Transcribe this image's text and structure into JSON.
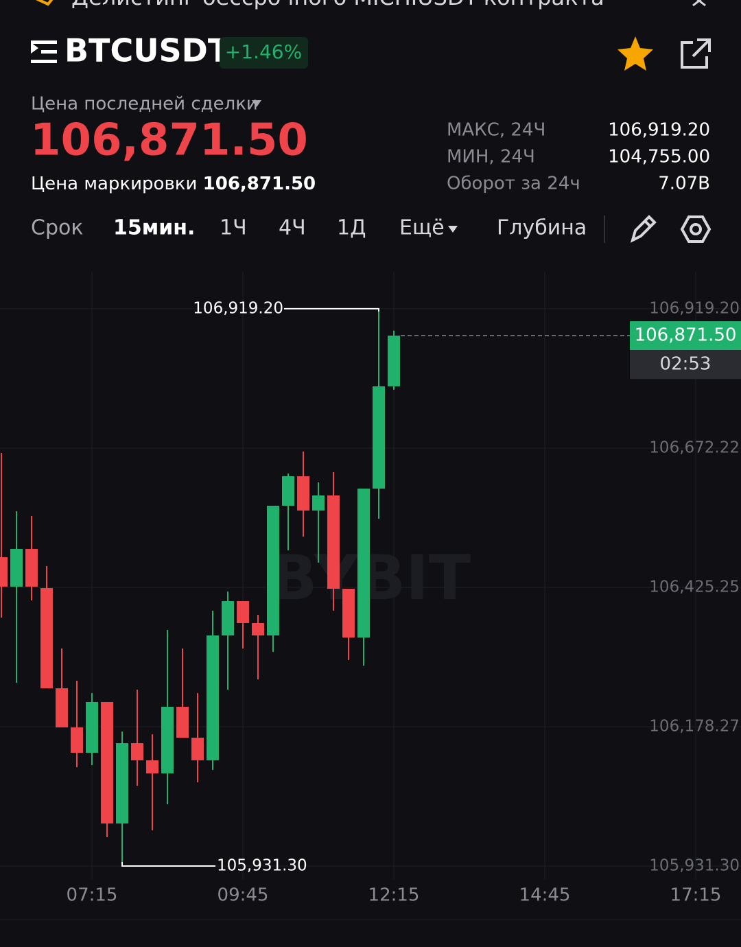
{
  "banner": "Делистинг бессрочного MICHIUSDT-контракта",
  "header": {
    "symbol": "BTCUSDT",
    "change": "+1.46%"
  },
  "price": {
    "last_label": "Цена последней сделки",
    "last": "106,871.50",
    "mark_label": "Цена маркировки",
    "mark": "106,871.50"
  },
  "stats": [
    {
      "label": "МАКС, 24Ч",
      "value": "106,919.20"
    },
    {
      "label": "МИН, 24Ч",
      "value": "104,755.00"
    },
    {
      "label": "Оборот за 24ч",
      "value": "7.07B"
    }
  ],
  "tabs": [
    "Срок",
    "15мин.",
    "1Ч",
    "4Ч",
    "1Д",
    "Ещё",
    "Глубина"
  ],
  "chart": {
    "type": "candlestick",
    "watermark": "BYBIT",
    "up_color": "#20b26c",
    "down_color": "#ef454a",
    "grid": true,
    "ylim": [
      105907,
      106986
    ],
    "yticks": [
      {
        "value": 106919.2,
        "label": "106,919.20"
      },
      {
        "value": 106672.22,
        "label": "106,672.22"
      },
      {
        "value": 106425.25,
        "label": "106,425.25"
      },
      {
        "value": 106178.27,
        "label": "106,178.27"
      },
      {
        "value": 105931.3,
        "label": "105,931.30"
      }
    ],
    "xticks": [
      "07:15",
      "09:45",
      "12:15",
      "14:45",
      "17:15"
    ],
    "high_marker": {
      "value": 106919.2,
      "label": "106,919.20"
    },
    "low_marker": {
      "value": 105931.3,
      "label": "105,931.30"
    },
    "last_price": {
      "value": 106871.5,
      "label": "106,871.50"
    },
    "countdown": "02:53",
    "candles": [
      {
        "open": 106478.8,
        "high": 106663.7,
        "low": 106371.7,
        "close": 106426.5
      },
      {
        "open": 106426.5,
        "high": 106560.3,
        "low": 106256.2,
        "close": 106493.4
      },
      {
        "open": 106493.4,
        "high": 106551.8,
        "low": 106402.1,
        "close": 106426.5
      },
      {
        "open": 106424.0,
        "high": 106463.0,
        "low": 106246.4,
        "close": 106246.4
      },
      {
        "open": 106246.4,
        "high": 106317.0,
        "low": 106177.1,
        "close": 106177.1
      },
      {
        "open": 106177.1,
        "high": 106259.8,
        "low": 106106.5,
        "close": 106132.1
      },
      {
        "open": 106132.1,
        "high": 106237.9,
        "low": 106110.2,
        "close": 106222.1
      },
      {
        "open": 106222.1,
        "high": 106222.1,
        "low": 105982.4,
        "close": 106006.7
      },
      {
        "open": 106006.7,
        "high": 106169.8,
        "low": 105931.3,
        "close": 106149.1
      },
      {
        "open": 106149.1,
        "high": 106244.0,
        "low": 106073.7,
        "close": 106118.7
      },
      {
        "open": 106118.7,
        "high": 106164.9,
        "low": 105994.6,
        "close": 106095.6
      },
      {
        "open": 106095.6,
        "high": 106349.8,
        "low": 106040.8,
        "close": 106213.6
      },
      {
        "open": 106213.6,
        "high": 106317.0,
        "low": 106158.8,
        "close": 106158.8
      },
      {
        "open": 106158.8,
        "high": 106237.9,
        "low": 106079.7,
        "close": 106118.7
      },
      {
        "open": 106118.7,
        "high": 106383.9,
        "low": 106101.6,
        "close": 106340.1
      },
      {
        "open": 106340.1,
        "high": 106418.0,
        "low": 106244.0,
        "close": 106400.9
      },
      {
        "open": 106400.9,
        "high": 106400.9,
        "low": 106317.0,
        "close": 106362.0
      },
      {
        "open": 106362.0,
        "high": 106376.6,
        "low": 106262.2,
        "close": 106340.1
      },
      {
        "open": 106340.1,
        "high": 106570.0,
        "low": 106310.9,
        "close": 106570.0
      },
      {
        "open": 106570.0,
        "high": 106627.2,
        "low": 106491.0,
        "close": 106622.3
      },
      {
        "open": 106622.3,
        "high": 106666.1,
        "low": 106515.3,
        "close": 106561.5
      },
      {
        "open": 106561.5,
        "high": 106611.4,
        "low": 106469.1,
        "close": 106588.3
      },
      {
        "open": 106588.3,
        "high": 106629.6,
        "low": 106383.9,
        "close": 106422.8
      },
      {
        "open": 106422.8,
        "high": 106422.8,
        "low": 106296.3,
        "close": 106336.4
      },
      {
        "open": 106336.4,
        "high": 106600.4,
        "low": 106286.6,
        "close": 106600.4
      },
      {
        "open": 106600.4,
        "high": 106919.2,
        "low": 106546.9,
        "close": 106781.7
      },
      {
        "open": 106781.7,
        "high": 106880.3,
        "low": 106775.6,
        "close": 106871.5
      }
    ]
  }
}
